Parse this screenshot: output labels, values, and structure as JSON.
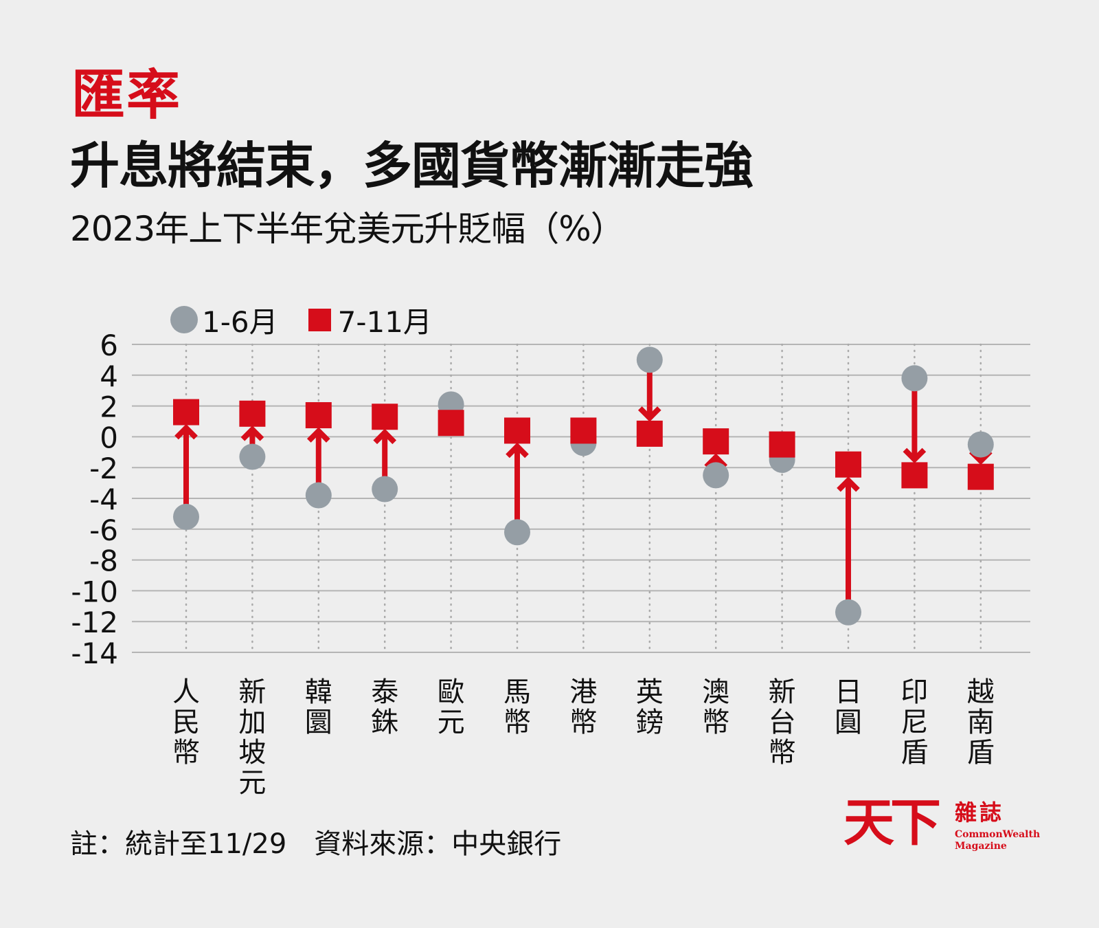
{
  "header": {
    "kicker": "匯率",
    "title": "升息將結束，多國貨幣漸漸走強",
    "subtitle": "2023年上下半年兌美元升貶幅（%）"
  },
  "legend": {
    "items": [
      {
        "label": "1-6月",
        "shape": "circle",
        "color": "#959ea5"
      },
      {
        "label": "7-11月",
        "shape": "square",
        "color": "#d60d1a"
      }
    ]
  },
  "colors": {
    "background": "#eeeeee",
    "first_half": "#959ea5",
    "second_half": "#d60d1a",
    "gridline": "#b4b4b4"
  },
  "footer": {
    "note": "註：統計至11/29　資料來源：中央銀行"
  },
  "logo": {
    "mark": "天下",
    "name_cn": "雜誌",
    "name_en_line1": "CommonWealth",
    "name_en_line2": "Magazine"
  },
  "chart_data": {
    "type": "dumbbell",
    "title": "升息將結束，多國貨幣漸漸走強",
    "subtitle": "2023年上下半年兌美元升貶幅（%）",
    "xlabel": "",
    "ylabel": "%",
    "ylim": [
      -14,
      6
    ],
    "yticks": [
      6,
      4,
      2,
      0,
      -2,
      -4,
      -6,
      -8,
      -10,
      -12,
      -14
    ],
    "grid": true,
    "legend_position": "top-left",
    "categories": [
      "人民幣",
      "新加坡元",
      "韓圜",
      "泰銖",
      "歐元",
      "馬幣",
      "港幣",
      "英鎊",
      "澳幣",
      "新台幣",
      "日圓",
      "印尼盾",
      "越南盾"
    ],
    "series": [
      {
        "name": "1-6月",
        "marker": "circle",
        "color": "#959ea5",
        "values": [
          -5.2,
          -1.3,
          -3.8,
          -3.4,
          2.1,
          -6.2,
          -0.4,
          5.0,
          -2.5,
          -1.5,
          -11.4,
          3.8,
          -0.5
        ]
      },
      {
        "name": "7-11月",
        "marker": "square",
        "color": "#d60d1a",
        "values": [
          1.6,
          1.5,
          1.4,
          1.3,
          0.9,
          0.4,
          0.4,
          0.2,
          -0.3,
          -0.5,
          -1.8,
          -2.5,
          -2.6
        ]
      }
    ],
    "annotations": [
      "Arrows drawn from 1-6月 value toward 7-11月 value"
    ],
    "note": "註：統計至11/29　資料來源：中央銀行"
  }
}
